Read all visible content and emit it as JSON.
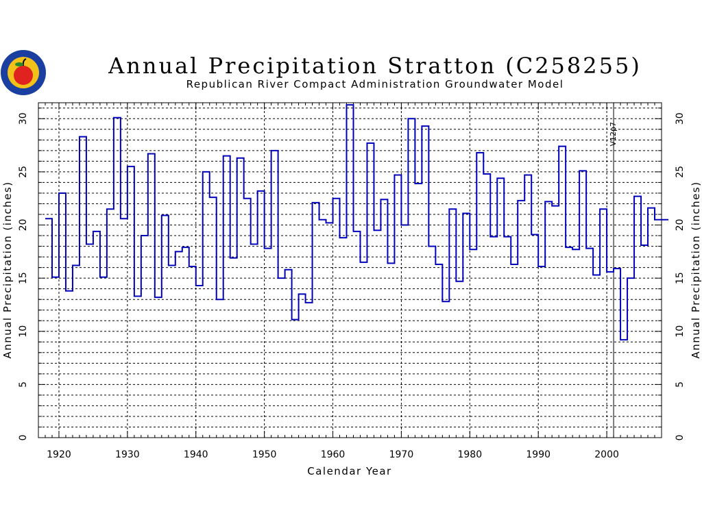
{
  "chart_data": {
    "type": "line",
    "title": "Annual Precipitation Stratton (C258255)",
    "subtitle": "Republican River Compact Administration Groundwater Model",
    "xlabel": "Calendar Year",
    "ylabel": "Annual Precipitation (inches)",
    "ylabel_right": "Annual Precipitation (inches)",
    "xlim": [
      1917,
      2008
    ],
    "ylim": [
      0,
      31.5
    ],
    "xticks": [
      1920,
      1930,
      1940,
      1950,
      1960,
      1970,
      1980,
      1990,
      2000
    ],
    "yticks": [
      0,
      5,
      10,
      15,
      20,
      25,
      30
    ],
    "grid": true,
    "step": true,
    "series_color": "#0000bb",
    "series": [
      {
        "x": [
          1918,
          1919,
          1920,
          1921,
          1922,
          1923,
          1924,
          1925,
          1926,
          1927,
          1928,
          1929,
          1930,
          1931,
          1932,
          1933,
          1934,
          1935,
          1936,
          1937,
          1938,
          1939,
          1940,
          1941,
          1942,
          1943,
          1944,
          1945,
          1946,
          1947,
          1948,
          1949,
          1950,
          1951,
          1952,
          1953,
          1954,
          1955,
          1956,
          1957,
          1958,
          1959,
          1960,
          1961,
          1962,
          1963,
          1964,
          1965,
          1966,
          1967,
          1968,
          1969,
          1970,
          1971,
          1972,
          1973,
          1974,
          1975,
          1976,
          1977,
          1978,
          1979,
          1980,
          1981,
          1982,
          1983,
          1984,
          1985,
          1986,
          1987,
          1988,
          1989,
          1990,
          1991,
          1992,
          1993,
          1994,
          1995,
          1996,
          1997,
          1998,
          1999,
          2000,
          2001,
          2002,
          2003,
          2004,
          2005,
          2006,
          2007,
          2008
        ],
        "values": [
          20.6,
          15.1,
          23.0,
          13.8,
          16.2,
          28.3,
          18.2,
          19.4,
          15.1,
          21.5,
          30.1,
          20.6,
          25.5,
          13.3,
          19.0,
          26.7,
          13.2,
          20.9,
          16.2,
          17.5,
          17.9,
          16.1,
          14.3,
          25.0,
          22.6,
          13.0,
          26.5,
          16.9,
          26.3,
          22.5,
          18.2,
          23.2,
          17.8,
          27.0,
          15.0,
          15.8,
          11.1,
          13.5,
          12.7,
          22.1,
          20.5,
          20.2,
          22.5,
          18.8,
          31.3,
          19.4,
          16.5,
          27.7,
          19.5,
          22.4,
          16.4,
          24.7,
          20.0,
          30.0,
          23.9,
          29.3,
          18.0,
          16.3,
          12.8,
          21.5,
          14.7,
          21.1,
          17.7,
          26.8,
          24.8,
          18.9,
          24.4,
          18.9,
          16.3,
          22.3,
          24.7,
          19.1,
          16.1,
          22.2,
          21.8,
          27.4,
          17.9,
          17.7,
          25.1,
          17.8,
          15.3,
          21.5,
          15.6,
          15.9,
          9.2,
          15.0,
          22.7,
          18.1,
          21.6,
          20.5,
          20.5
        ]
      }
    ],
    "annotations": [
      {
        "text": "V12p7",
        "x": 2001,
        "y_top": 31.5
      }
    ],
    "colors": {
      "logo_outer": "#1a3fa0",
      "logo_inner": "#f2c21a",
      "apple": "#e0231e",
      "leaf": "#2a8a2a"
    }
  }
}
